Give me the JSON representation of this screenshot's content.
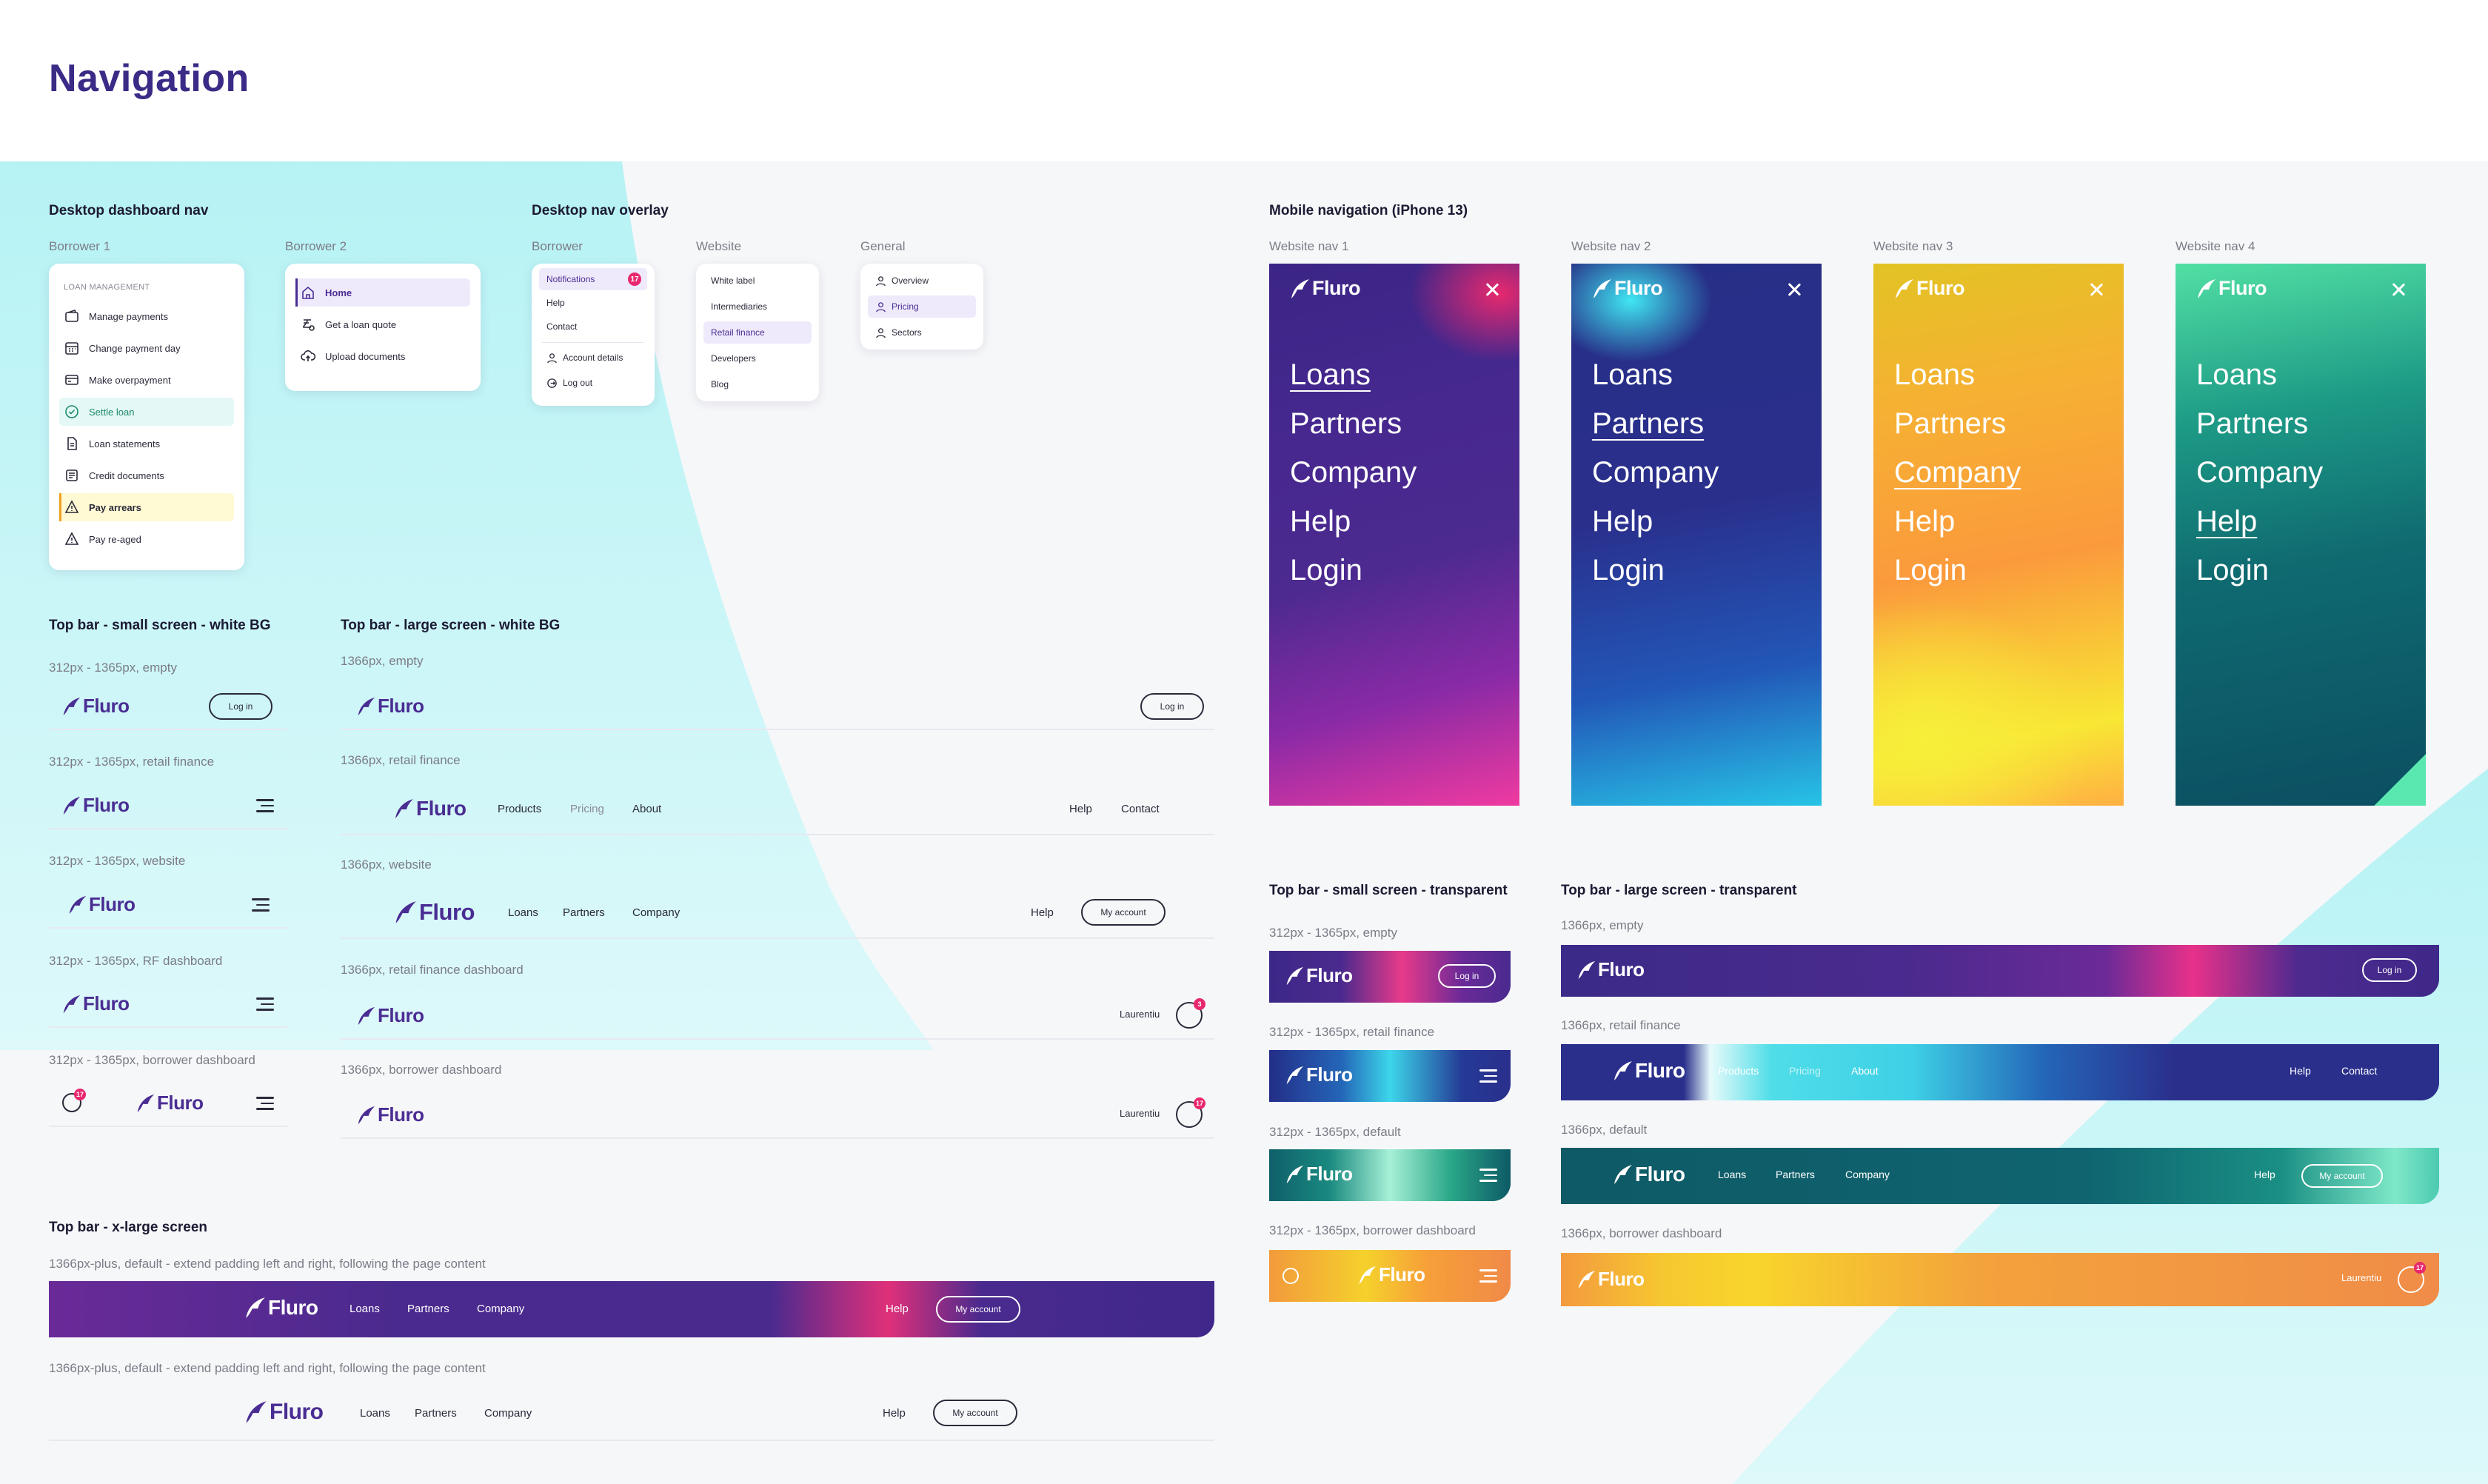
{
  "page": {
    "title": "Navigation"
  },
  "brand": {
    "name": "Fluro",
    "primary": "#4a2d93",
    "accent": "#e8286e",
    "cyan": "#b9f3f4"
  },
  "dashboard_nav": {
    "label": "Desktop dashboard nav",
    "b1_label": "Borrower 1",
    "b1_heading": "LOAN MANAGEMENT",
    "b1_items": [
      "Manage payments",
      "Change payment day",
      "Make overpayment",
      "Settle loan",
      "Loan statements",
      "Credit documents",
      "Pay arrears",
      "Pay re-aged"
    ],
    "b2_label": "Borrower 2",
    "b2_items": [
      "Home",
      "Get a loan quote",
      "Upload documents"
    ]
  },
  "overlay": {
    "label": "Desktop nav overlay",
    "borrower_label": "Borrower",
    "borrower_items": [
      "Notifications",
      "Help",
      "Contact",
      "Account details",
      "Log out"
    ],
    "notif_count": "17",
    "website_label": "Website",
    "website_items": [
      "White label",
      "Intermediaries",
      "Retail finance",
      "Developers",
      "Blog"
    ],
    "general_label": "General",
    "general_items": [
      "Overview",
      "Pricing",
      "Sectors"
    ]
  },
  "mobile": {
    "label": "Mobile navigation (iPhone 13)",
    "nav_labels": [
      "Website nav 1",
      "Website nav 2",
      "Website nav 3",
      "Website nav 4"
    ],
    "items": [
      "Loans",
      "Partners",
      "Company",
      "Help",
      "Login"
    ]
  },
  "topbar_small_white": {
    "label": "Top bar - small screen - white BG",
    "variants": [
      "312px - 1365px, empty",
      "312px - 1365px, retail finance",
      "312px - 1365px, website",
      "312px - 1365px, RF dashboard",
      "312px - 1365px, borrower dashboard"
    ],
    "login": "Log in",
    "badge": "17"
  },
  "topbar_large_white": {
    "label": "Top bar - large screen - white BG",
    "variants": [
      "1366px, empty",
      "1366px, retail finance",
      "1366px, website",
      "1366px, retail finance dashboard",
      "1366px, borrower dashboard"
    ],
    "login": "Log in",
    "rf_links": [
      "Products",
      "Pricing",
      "About"
    ],
    "right_links": [
      "Help",
      "Contact"
    ],
    "web_links": [
      "Loans",
      "Partners",
      "Company"
    ],
    "help": "Help",
    "account": "My account",
    "user": "Laurentiu",
    "badge_a": "3",
    "badge_b": "17"
  },
  "topbar_xl": {
    "label": "Top bar - x-large screen",
    "variant": "1366px-plus, default - extend padding left and right, following the page content",
    "links": [
      "Loans",
      "Partners",
      "Company"
    ],
    "help": "Help",
    "account": "My account"
  },
  "topbar_small_transparent": {
    "label": "Top bar - small screen - transparent",
    "variants": [
      "312px - 1365px, empty",
      "312px - 1365px, retail finance",
      "312px - 1365px, default",
      "312px - 1365px, borrower dashboard"
    ],
    "login": "Log in"
  },
  "topbar_large_transparent": {
    "label": "Top bar - large screen - transparent",
    "variants": [
      "1366px, empty",
      "1366px, retail finance",
      "1366px, default",
      "1366px, borrower dashboard"
    ],
    "login": "Log in",
    "rf_links": [
      "Products",
      "Pricing",
      "About"
    ],
    "right_links": [
      "Help",
      "Contact"
    ],
    "web_links": [
      "Loans",
      "Partners",
      "Company"
    ],
    "help": "Help",
    "account": "My account",
    "user": "Laurentiu",
    "badge": "17"
  }
}
